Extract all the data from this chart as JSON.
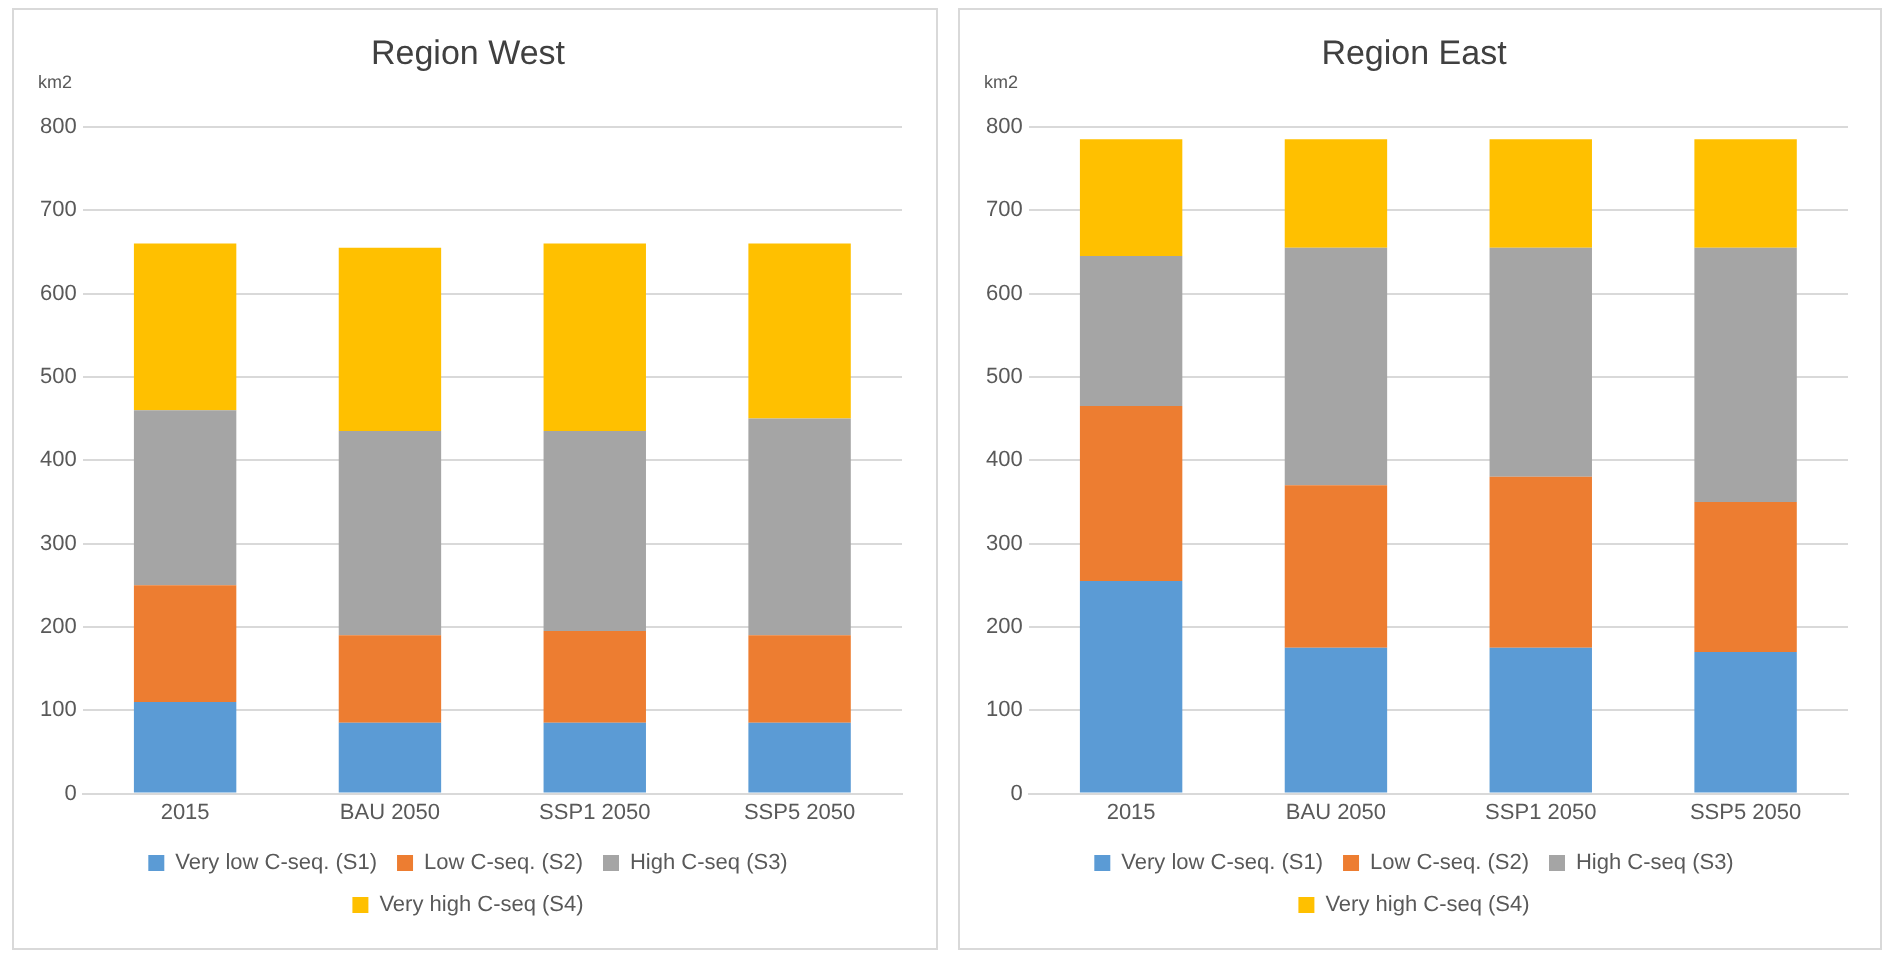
{
  "chart_data": [
    {
      "type": "bar",
      "title": "Region West",
      "ylabel": "km2",
      "stacked": true,
      "categories": [
        "2015",
        "BAU 2050",
        "SSP1 2050",
        "SSP5 2050"
      ],
      "ylim": [
        0,
        800
      ],
      "yticks": [
        0,
        100,
        200,
        300,
        400,
        500,
        600,
        700,
        800
      ],
      "grid": "y",
      "legend": "bottom",
      "series": [
        {
          "name": "Very low C-seq. (S1)",
          "color": "#5b9bd5",
          "values": [
            110,
            85,
            85,
            85
          ]
        },
        {
          "name": "Low C-seq. (S2)",
          "color": "#ed7d31",
          "values": [
            140,
            105,
            110,
            105
          ]
        },
        {
          "name": "High C-seq (S3)",
          "color": "#a5a5a5",
          "values": [
            210,
            245,
            240,
            260
          ]
        },
        {
          "name": "Very high C-seq (S4)",
          "color": "#ffc000",
          "values": [
            200,
            220,
            225,
            210
          ]
        }
      ]
    },
    {
      "type": "bar",
      "title": "Region East",
      "ylabel": "km2",
      "stacked": true,
      "categories": [
        "2015",
        "BAU 2050",
        "SSP1 2050",
        "SSP5 2050"
      ],
      "ylim": [
        0,
        800
      ],
      "yticks": [
        0,
        100,
        200,
        300,
        400,
        500,
        600,
        700,
        800
      ],
      "grid": "y",
      "legend": "bottom",
      "series": [
        {
          "name": "Very low C-seq. (S1)",
          "color": "#5b9bd5",
          "values": [
            255,
            175,
            175,
            170
          ]
        },
        {
          "name": "Low C-seq. (S2)",
          "color": "#ed7d31",
          "values": [
            210,
            195,
            205,
            180
          ]
        },
        {
          "name": "High C-seq (S3)",
          "color": "#a5a5a5",
          "values": [
            180,
            285,
            275,
            305
          ]
        },
        {
          "name": "Very high C-seq (S4)",
          "color": "#ffc000",
          "values": [
            140,
            130,
            130,
            130
          ]
        }
      ]
    }
  ]
}
